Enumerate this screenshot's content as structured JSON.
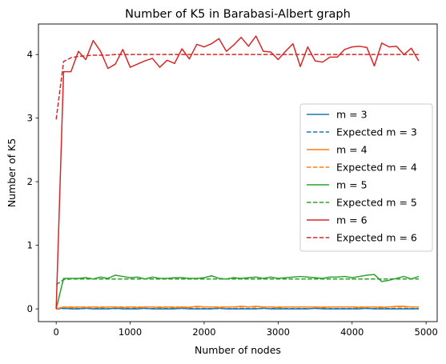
{
  "chart_data": {
    "type": "line",
    "title": "Number of K5 in Barabasi-Albert graph",
    "xlabel": "Number of nodes",
    "ylabel": "Number of K5",
    "xlim": [
      -240,
      5150
    ],
    "ylim": [
      -0.2,
      4.48
    ],
    "xticks": [
      0,
      1000,
      2000,
      3000,
      4000,
      5000
    ],
    "yticks": [
      0,
      1,
      2,
      3,
      4
    ],
    "grid": false,
    "legend_position": "center-right",
    "x": [
      0,
      100,
      200,
      300,
      400,
      500,
      600,
      700,
      800,
      900,
      1000,
      1100,
      1200,
      1300,
      1400,
      1500,
      1600,
      1700,
      1800,
      1900,
      2000,
      2100,
      2200,
      2300,
      2400,
      2500,
      2600,
      2700,
      2800,
      2900,
      3000,
      3100,
      3200,
      3300,
      3400,
      3500,
      3600,
      3700,
      3800,
      3900,
      4000,
      4100,
      4200,
      4300,
      4400,
      4500,
      4600,
      4700,
      4800,
      4900
    ],
    "series": [
      {
        "name": "m = 3",
        "color": "#1f77b4",
        "style": "solid",
        "values": [
          0,
          0.01,
          0,
          0,
          0.01,
          0,
          0,
          0,
          0.01,
          0,
          0,
          0,
          0.01,
          0,
          0,
          0,
          0,
          0.01,
          0,
          0,
          0,
          0,
          0.01,
          0,
          0,
          0,
          0,
          0,
          0.01,
          0,
          0,
          0,
          0,
          0,
          0,
          0.01,
          0,
          0,
          0,
          0,
          0,
          0,
          0.01,
          0,
          0,
          0,
          0,
          0,
          0,
          0
        ]
      },
      {
        "name": "Expected m = 3",
        "color": "#1f77b4",
        "style": "dashed",
        "values": [
          0,
          0.004,
          0.004,
          0.004,
          0.004,
          0.004,
          0.004,
          0.004,
          0.004,
          0.004,
          0.004,
          0.004,
          0.004,
          0.004,
          0.004,
          0.004,
          0.004,
          0.004,
          0.004,
          0.004,
          0.004,
          0.004,
          0.004,
          0.004,
          0.004,
          0.004,
          0.004,
          0.004,
          0.004,
          0.004,
          0.004,
          0.004,
          0.004,
          0.004,
          0.004,
          0.004,
          0.004,
          0.004,
          0.004,
          0.004,
          0.004,
          0.004,
          0.004,
          0.004,
          0.004,
          0.004,
          0.004,
          0.004,
          0.004,
          0.004
        ]
      },
      {
        "name": "m = 4",
        "color": "#ff7f0e",
        "style": "solid",
        "values": [
          0,
          0.03,
          0.02,
          0.03,
          0.02,
          0.03,
          0.02,
          0.03,
          0.03,
          0.02,
          0.03,
          0.02,
          0.03,
          0.03,
          0.02,
          0.03,
          0.02,
          0.03,
          0.02,
          0.04,
          0.03,
          0.03,
          0.02,
          0.03,
          0.03,
          0.04,
          0.03,
          0.04,
          0.03,
          0.03,
          0.02,
          0.03,
          0.03,
          0.03,
          0.03,
          0.03,
          0.02,
          0.03,
          0.03,
          0.03,
          0.03,
          0.02,
          0.03,
          0.03,
          0.02,
          0.03,
          0.04,
          0.04,
          0.03,
          0.03
        ]
      },
      {
        "name": "Expected m = 4",
        "color": "#ff7f0e",
        "style": "dashed",
        "values": [
          0,
          0.03,
          0.03,
          0.03,
          0.03,
          0.03,
          0.03,
          0.03,
          0.03,
          0.03,
          0.03,
          0.03,
          0.03,
          0.03,
          0.03,
          0.03,
          0.03,
          0.03,
          0.03,
          0.03,
          0.03,
          0.03,
          0.03,
          0.03,
          0.03,
          0.03,
          0.03,
          0.03,
          0.03,
          0.03,
          0.03,
          0.03,
          0.03,
          0.03,
          0.03,
          0.03,
          0.03,
          0.03,
          0.03,
          0.03,
          0.03,
          0.03,
          0.03,
          0.03,
          0.03,
          0.03,
          0.03,
          0.03,
          0.03,
          0.03
        ]
      },
      {
        "name": "m = 5",
        "color": "#2ca02c",
        "style": "solid",
        "values": [
          0,
          0.48,
          0.48,
          0.48,
          0.49,
          0.47,
          0.5,
          0.48,
          0.53,
          0.51,
          0.49,
          0.5,
          0.47,
          0.5,
          0.48,
          0.48,
          0.49,
          0.49,
          0.48,
          0.48,
          0.49,
          0.52,
          0.48,
          0.47,
          0.49,
          0.48,
          0.49,
          0.5,
          0.48,
          0.5,
          0.48,
          0.49,
          0.5,
          0.51,
          0.5,
          0.49,
          0.48,
          0.5,
          0.5,
          0.51,
          0.49,
          0.51,
          0.53,
          0.54,
          0.43,
          0.45,
          0.48,
          0.51,
          0.47,
          0.51
        ]
      },
      {
        "name": "Expected m = 5",
        "color": "#2ca02c",
        "style": "dashed",
        "values": [
          0.38,
          0.46,
          0.47,
          0.47,
          0.47,
          0.47,
          0.47,
          0.47,
          0.47,
          0.47,
          0.47,
          0.47,
          0.47,
          0.47,
          0.47,
          0.47,
          0.47,
          0.47,
          0.47,
          0.47,
          0.47,
          0.47,
          0.47,
          0.47,
          0.47,
          0.47,
          0.47,
          0.47,
          0.47,
          0.47,
          0.47,
          0.47,
          0.47,
          0.47,
          0.47,
          0.47,
          0.47,
          0.47,
          0.47,
          0.47,
          0.47,
          0.47,
          0.47,
          0.47,
          0.47,
          0.47,
          0.47,
          0.47,
          0.47,
          0.47
        ]
      },
      {
        "name": "m = 6",
        "color": "#d62728",
        "style": "solid",
        "values": [
          0,
          3.73,
          3.73,
          4.05,
          3.92,
          4.22,
          4.05,
          3.78,
          3.85,
          4.08,
          3.8,
          3.85,
          3.9,
          3.94,
          3.8,
          3.91,
          3.86,
          4.09,
          3.93,
          4.16,
          4.12,
          4.17,
          4.25,
          4.05,
          4.15,
          4.27,
          4.13,
          4.29,
          4.05,
          4.04,
          3.92,
          4.05,
          4.17,
          3.81,
          4.12,
          3.9,
          3.88,
          3.96,
          3.96,
          4.08,
          4.12,
          4.13,
          4.11,
          3.82,
          4.18,
          4.12,
          4.13,
          4.0,
          4.1,
          3.9
        ]
      },
      {
        "name": "Expected m = 6",
        "color": "#d62728",
        "style": "dashed",
        "values": [
          2.98,
          3.89,
          3.95,
          3.97,
          3.98,
          3.99,
          3.99,
          3.99,
          4.0,
          4.0,
          4.0,
          4.0,
          4.0,
          4.0,
          4.0,
          4.0,
          4.0,
          4.0,
          4.0,
          4.0,
          4.0,
          4.0,
          4.0,
          4.0,
          4.0,
          4.0,
          4.0,
          4.0,
          4.0,
          4.0,
          4.0,
          4.0,
          4.0,
          4.0,
          4.0,
          4.0,
          4.0,
          4.0,
          4.0,
          4.0,
          4.0,
          4.0,
          4.0,
          4.0,
          4.0,
          4.0,
          4.0,
          4.0,
          4.0,
          4.0
        ]
      }
    ]
  }
}
